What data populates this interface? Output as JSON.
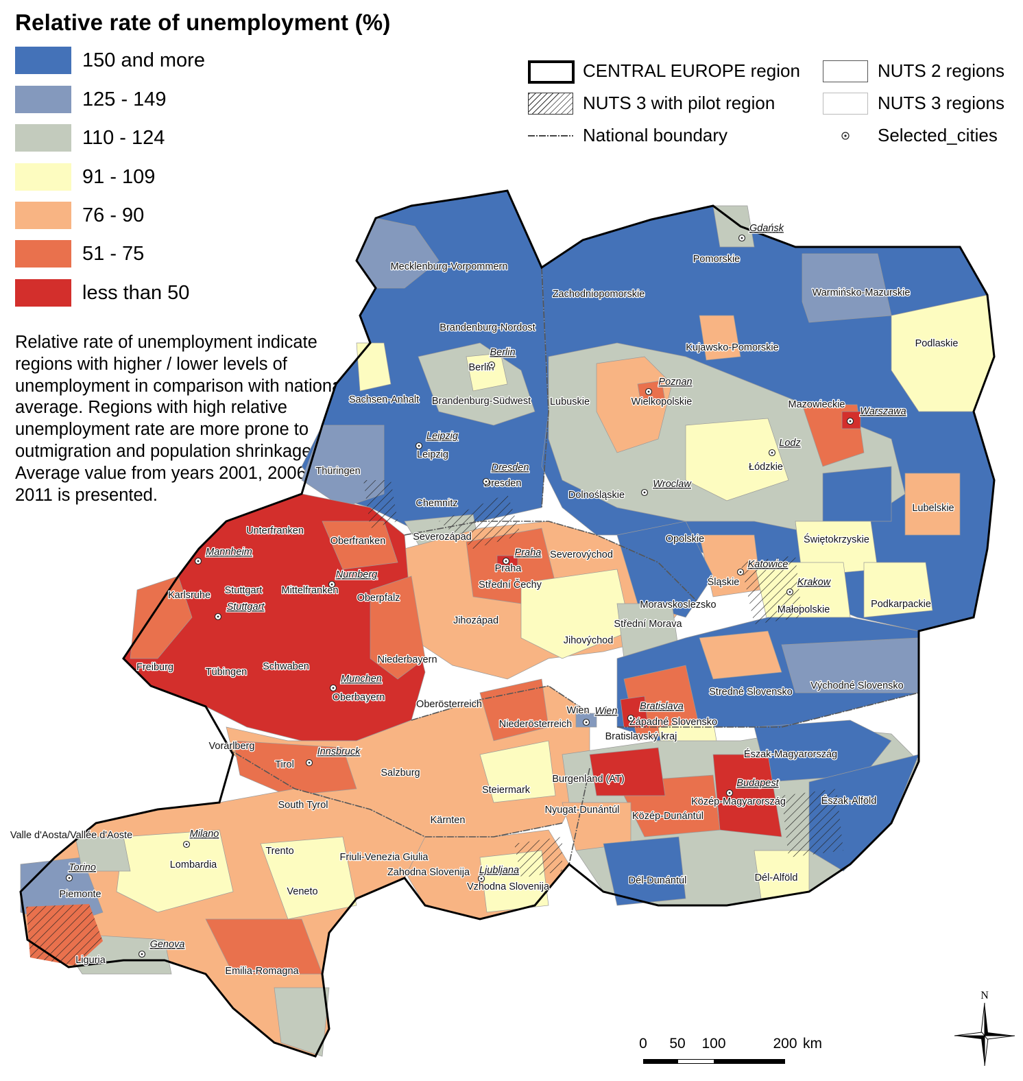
{
  "title": "Relative rate of unemployment (%)",
  "classes": [
    {
      "label": "150 and more",
      "color": "#4472b8"
    },
    {
      "label": "125 - 149",
      "color": "#8499bd"
    },
    {
      "label": "110 - 124",
      "color": "#c3cbbd"
    },
    {
      "label": "91 - 109",
      "color": "#fdfcc0"
    },
    {
      "label": "76 - 90",
      "color": "#f8b483"
    },
    {
      "label": "51 - 75",
      "color": "#e9714d"
    },
    {
      "label": "less than 50",
      "color": "#d32f2c"
    }
  ],
  "description": "Relative rate of unemployment indicate regions with higher / lower levels of unemployment in comparison with national average. Regions with high relative unemployment rate are more prone to outmigration and population shrinkage. Average value from years 2001, 2006 and 2011 is presented.",
  "legend": {
    "central_europe": "CENTRAL EUROPE region",
    "pilot": "NUTS 3 with pilot region",
    "national_boundary": "National boundary",
    "nuts2": "NUTS 2 regions",
    "nuts3": "NUTS 3 regions",
    "cities": "Selected_cities"
  },
  "north_label": "N",
  "scale": {
    "ticks": [
      "0",
      "50",
      "100",
      "200"
    ],
    "unit": "km"
  },
  "region_labels": [
    "Mecklenburg-Vorpommern",
    "Zachodniopomorskie",
    "Pomorskie",
    "Warmińsko-Mazurskie",
    "Brandenburg-Nordost",
    "Berlin",
    "Kujawsko-Pomorskie",
    "Podlaskie",
    "Sachsen-Anhalt",
    "Brandenburg-Südwest",
    "Lubuskie",
    "Wielkopolskie",
    "Mazowieckie",
    "Leipzig",
    "Łódzkie",
    "Thüringen",
    "Dresden",
    "Dolnośląskie",
    "Lubelskie",
    "Chemnitz",
    "Unterfranken",
    "Oberfranken",
    "Severozápad",
    "Opolskie",
    "Świętokrzyskie",
    "Severovýchod",
    "Praha",
    "Střední Čechy",
    "Śląskie",
    "Karlsruhe",
    "Stuttgart",
    "Mittelfranken",
    "Oberpfalz",
    "Moravskoslezsko",
    "Małopolskie",
    "Podkarpackie",
    "Jihozápad",
    "Střední Morava",
    "Jihovýchod",
    "Freiburg",
    "Tübingen",
    "Schwaben",
    "Niederbayern",
    "Stredné Slovensko",
    "Východné Slovensko",
    "Oberbayern",
    "Oberösterreich",
    "Wien",
    "Západné Slovensko",
    "Niederösterreich",
    "Bratislavský kraj",
    "Vorarlberg",
    "Tirol",
    "Észak-Magyarország",
    "Salzburg",
    "Burgenland (AT)",
    "Steiermark",
    "South Tyrol",
    "Közép-Magyarország",
    "Észak-Alföld",
    "Nyugat-Dunántúl",
    "Közép-Dunántúl",
    "Kärnten",
    "Valle d'Aosta/Vallée d'Aoste",
    "Trento",
    "Friuli-Venezia Giulia",
    "Lombardia",
    "Zahodna Slovenija",
    "Vzhodna Slovenija",
    "Piemonte",
    "Veneto",
    "Dél-Dunántúl",
    "Dél-Alföld",
    "Liguria",
    "Emilia-Romagna"
  ],
  "city_labels": [
    "Gdańsk",
    "Berlin",
    "Poznan",
    "Warszawa",
    "Lodz",
    "Leipzig",
    "Dresden",
    "Wroclaw",
    "Mannheim",
    "Praha",
    "Katowice",
    "Nurnberg",
    "Krakow",
    "Stuttgart",
    "Munchen",
    "Bratislava",
    "Wien",
    "Innsbruck",
    "Budapest",
    "Milano",
    "Ljubljana",
    "Torino",
    "Genova"
  ]
}
